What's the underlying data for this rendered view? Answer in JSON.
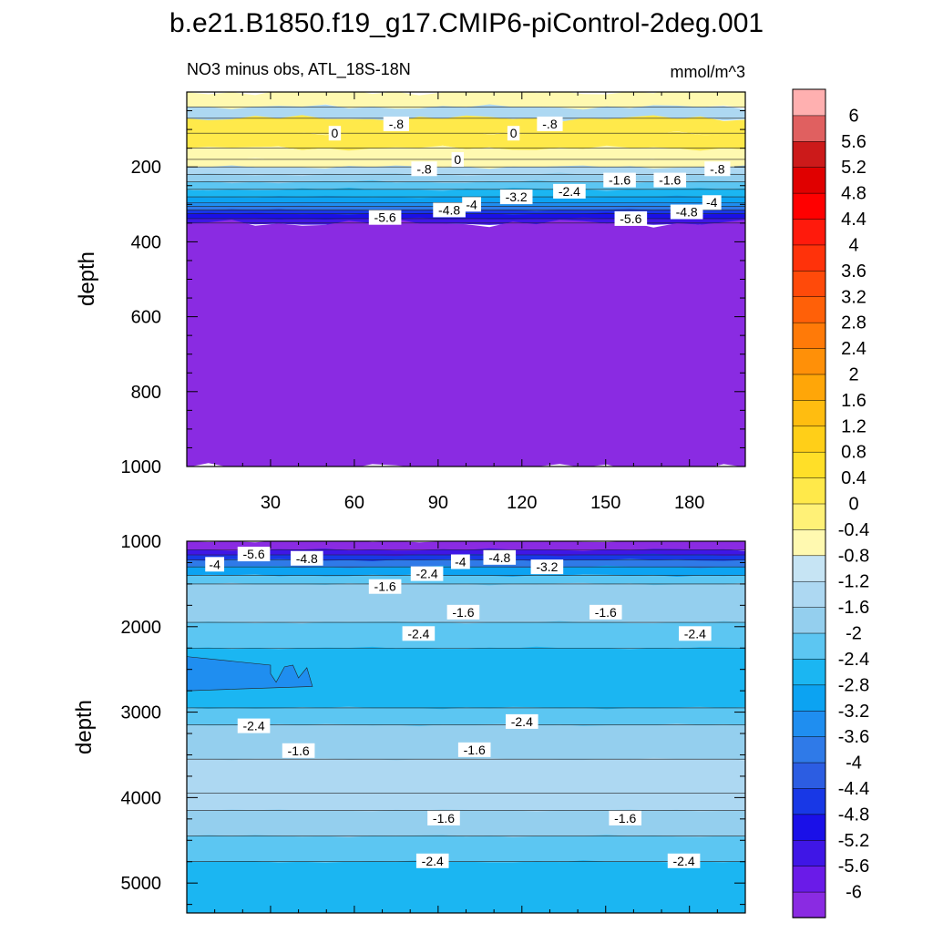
{
  "title": "b.e21.B1850.f19_g17.CMIP6-piControl-2deg.001",
  "colors": {
    "levels": [
      "#8a2be2",
      "#6a1be8",
      "#3f16e6",
      "#1a10e8",
      "#1838e6",
      "#2c5de2",
      "#2f7ae8",
      "#1f8ef0",
      "#0ca3f2",
      "#1bb6f2",
      "#5cc6f2",
      "#94cfee",
      "#add8f2",
      "#c6e4f4",
      "#fff9b0",
      "#fff177",
      "#ffe94a",
      "#ffdf28",
      "#ffcf18",
      "#ffbd10",
      "#ffa608",
      "#ff9008",
      "#ff7a08",
      "#ff6008",
      "#ff4a0a",
      "#ff320a",
      "#ff1a0c",
      "#ff0000",
      "#e00000",
      "#cc1a1a",
      "#e06060",
      "#ffb0b0"
    ],
    "label_background": "#ffffff"
  },
  "chart_data": [
    {
      "type": "contour",
      "left_title": "NO3 minus obs, ATL_18S-18N",
      "right_title": "mmol/m^3",
      "ylabel": "depth",
      "xlabel": "",
      "xlim": [
        0,
        200
      ],
      "ylim": [
        1000,
        0
      ],
      "xticks": [
        30,
        60,
        90,
        120,
        150,
        180
      ],
      "yticks": [
        200,
        400,
        600,
        800,
        1000
      ],
      "zones": [
        {
          "from": 0,
          "to": 40,
          "value": -0.6
        },
        {
          "from": 40,
          "to": 70,
          "value": -1.2
        },
        {
          "from": 70,
          "to": 110,
          "value": 0.2
        },
        {
          "from": 110,
          "to": 150,
          "value": 0.3
        },
        {
          "from": 150,
          "to": 180,
          "value": -0.4
        },
        {
          "from": 180,
          "to": 200,
          "value": -0.8
        },
        {
          "from": 200,
          "to": 220,
          "value": -1.4
        },
        {
          "from": 220,
          "to": 240,
          "value": -1.8
        },
        {
          "from": 240,
          "to": 260,
          "value": -2.2
        },
        {
          "from": 260,
          "to": 280,
          "value": -2.6
        },
        {
          "from": 280,
          "to": 295,
          "value": -3.0
        },
        {
          "from": 295,
          "to": 305,
          "value": -3.4
        },
        {
          "from": 305,
          "to": 315,
          "value": -3.8
        },
        {
          "from": 315,
          "to": 325,
          "value": -4.6
        },
        {
          "from": 325,
          "to": 338,
          "value": -5.0
        },
        {
          "from": 338,
          "to": 350,
          "value": -5.4
        },
        {
          "from": 350,
          "to": 1000,
          "value": -6.2
        }
      ],
      "labels": [
        {
          "x": 53,
          "y": 110,
          "text": "0"
        },
        {
          "x": 75,
          "y": 85,
          "text": "-.8"
        },
        {
          "x": 117,
          "y": 110,
          "text": "0"
        },
        {
          "x": 130,
          "y": 85,
          "text": "-.8"
        },
        {
          "x": 97,
          "y": 180,
          "text": "0"
        },
        {
          "x": 85,
          "y": 205,
          "text": "-.8"
        },
        {
          "x": 190,
          "y": 205,
          "text": "-.8"
        },
        {
          "x": 155,
          "y": 235,
          "text": "-1.6"
        },
        {
          "x": 173,
          "y": 235,
          "text": "-1.6"
        },
        {
          "x": 137,
          "y": 265,
          "text": "-2.4"
        },
        {
          "x": 118,
          "y": 280,
          "text": "-3.2"
        },
        {
          "x": 102,
          "y": 300,
          "text": "-4"
        },
        {
          "x": 188,
          "y": 295,
          "text": "-4"
        },
        {
          "x": 94,
          "y": 315,
          "text": "-4.8"
        },
        {
          "x": 179,
          "y": 320,
          "text": "-4.8"
        },
        {
          "x": 71,
          "y": 335,
          "text": "-5.6"
        },
        {
          "x": 159,
          "y": 338,
          "text": "-5.6"
        }
      ]
    },
    {
      "type": "contour",
      "ylabel": "depth",
      "xlim": [
        0,
        200
      ],
      "ylim": [
        5350,
        1000
      ],
      "xticks": [
        30,
        60,
        90,
        120,
        150,
        180
      ],
      "yticks": [
        1000,
        2000,
        3000,
        4000,
        5000
      ],
      "zones": [
        {
          "from": 1000,
          "to": 1100,
          "value": -6.2
        },
        {
          "from": 1100,
          "to": 1160,
          "value": -5.4
        },
        {
          "from": 1160,
          "to": 1220,
          "value": -4.6
        },
        {
          "from": 1220,
          "to": 1300,
          "value": -3.8
        },
        {
          "from": 1300,
          "to": 1400,
          "value": -3.0
        },
        {
          "from": 1400,
          "to": 1500,
          "value": -2.2
        },
        {
          "from": 1500,
          "to": 1950,
          "value": -1.8
        },
        {
          "from": 1950,
          "to": 2250,
          "value": -2.2
        },
        {
          "from": 2250,
          "to": 2950,
          "value": -2.6
        },
        {
          "from": 2950,
          "to": 3150,
          "value": -2.2
        },
        {
          "from": 3150,
          "to": 3550,
          "value": -1.8
        },
        {
          "from": 3550,
          "to": 3950,
          "value": -1.4
        },
        {
          "from": 3950,
          "to": 4150,
          "value": -1.4
        },
        {
          "from": 4150,
          "to": 4450,
          "value": -1.8
        },
        {
          "from": 4450,
          "to": 4750,
          "value": -2.2
        },
        {
          "from": 4750,
          "to": 5350,
          "value": -2.6
        }
      ],
      "patch": {
        "value": -3.4
      },
      "labels": [
        {
          "x": 10,
          "y": 1270,
          "text": "-4"
        },
        {
          "x": 24,
          "y": 1150,
          "text": "-5.6"
        },
        {
          "x": 43,
          "y": 1200,
          "text": "-4.8"
        },
        {
          "x": 98,
          "y": 1240,
          "text": "-4"
        },
        {
          "x": 112,
          "y": 1190,
          "text": "-4.8"
        },
        {
          "x": 129,
          "y": 1300,
          "text": "-3.2"
        },
        {
          "x": 86,
          "y": 1380,
          "text": "-2.4"
        },
        {
          "x": 71,
          "y": 1530,
          "text": "-1.6"
        },
        {
          "x": 99,
          "y": 1830,
          "text": "-1.6"
        },
        {
          "x": 150,
          "y": 1830,
          "text": "-1.6"
        },
        {
          "x": 83,
          "y": 2080,
          "text": "-2.4"
        },
        {
          "x": 182,
          "y": 2080,
          "text": "-2.4"
        },
        {
          "x": 24,
          "y": 3160,
          "text": "-2.4"
        },
        {
          "x": 120,
          "y": 3110,
          "text": "-2.4"
        },
        {
          "x": 40,
          "y": 3450,
          "text": "-1.6"
        },
        {
          "x": 103,
          "y": 3440,
          "text": "-1.6"
        },
        {
          "x": 92,
          "y": 4240,
          "text": "-1.6"
        },
        {
          "x": 157,
          "y": 4240,
          "text": "-1.6"
        },
        {
          "x": 88,
          "y": 4740,
          "text": "-2.4"
        },
        {
          "x": 178,
          "y": 4740,
          "text": "-2.4"
        }
      ]
    }
  ],
  "colorbar": {
    "labels": [
      "6",
      "5.6",
      "5.2",
      "4.8",
      "4.4",
      "4",
      "3.6",
      "3.2",
      "2.8",
      "2.4",
      "2",
      "1.6",
      "1.2",
      "0.8",
      "0.4",
      "0",
      "-0.4",
      "-0.8",
      "-1.2",
      "-1.6",
      "-2",
      "-2.4",
      "-2.8",
      "-3.2",
      "-3.6",
      "-4",
      "-4.4",
      "-4.8",
      "-5.2",
      "-5.6",
      "-6"
    ]
  }
}
